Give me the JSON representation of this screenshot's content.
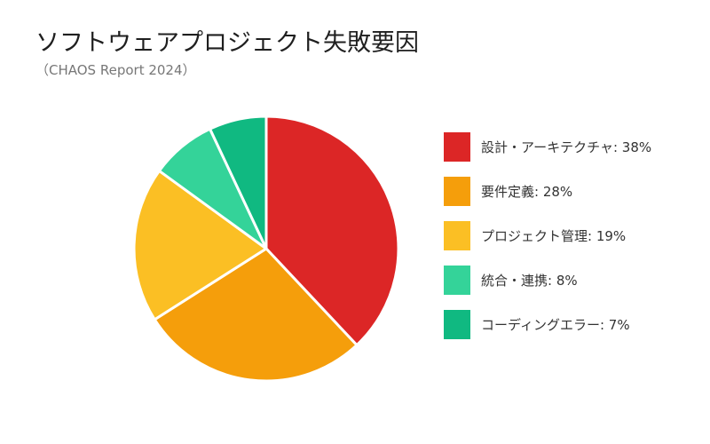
{
  "chart_data": {
    "type": "pie",
    "title": "ソフトウェアプロジェクト失敗要因",
    "subtitle": "（CHAOS Report 2024）",
    "categories": [
      "設計・アーキテクチャ",
      "要件定義",
      "プロジェクト管理",
      "統合・連携",
      "コーディングエラー"
    ],
    "values": [
      38,
      28,
      19,
      8,
      7
    ],
    "unit": "%",
    "legend_labels": [
      "設計・アーキテクチャ: 38%",
      "要件定義: 28%",
      "プロジェクト管理: 19%",
      "統合・連携: 8%",
      "コーディングエラー: 7%"
    ],
    "colors": [
      "#dc2626",
      "#f59e0b",
      "#fbbf24",
      "#34d399",
      "#10b981"
    ],
    "legend_position": "right",
    "start_angle": "top",
    "direction": "clockwise"
  }
}
